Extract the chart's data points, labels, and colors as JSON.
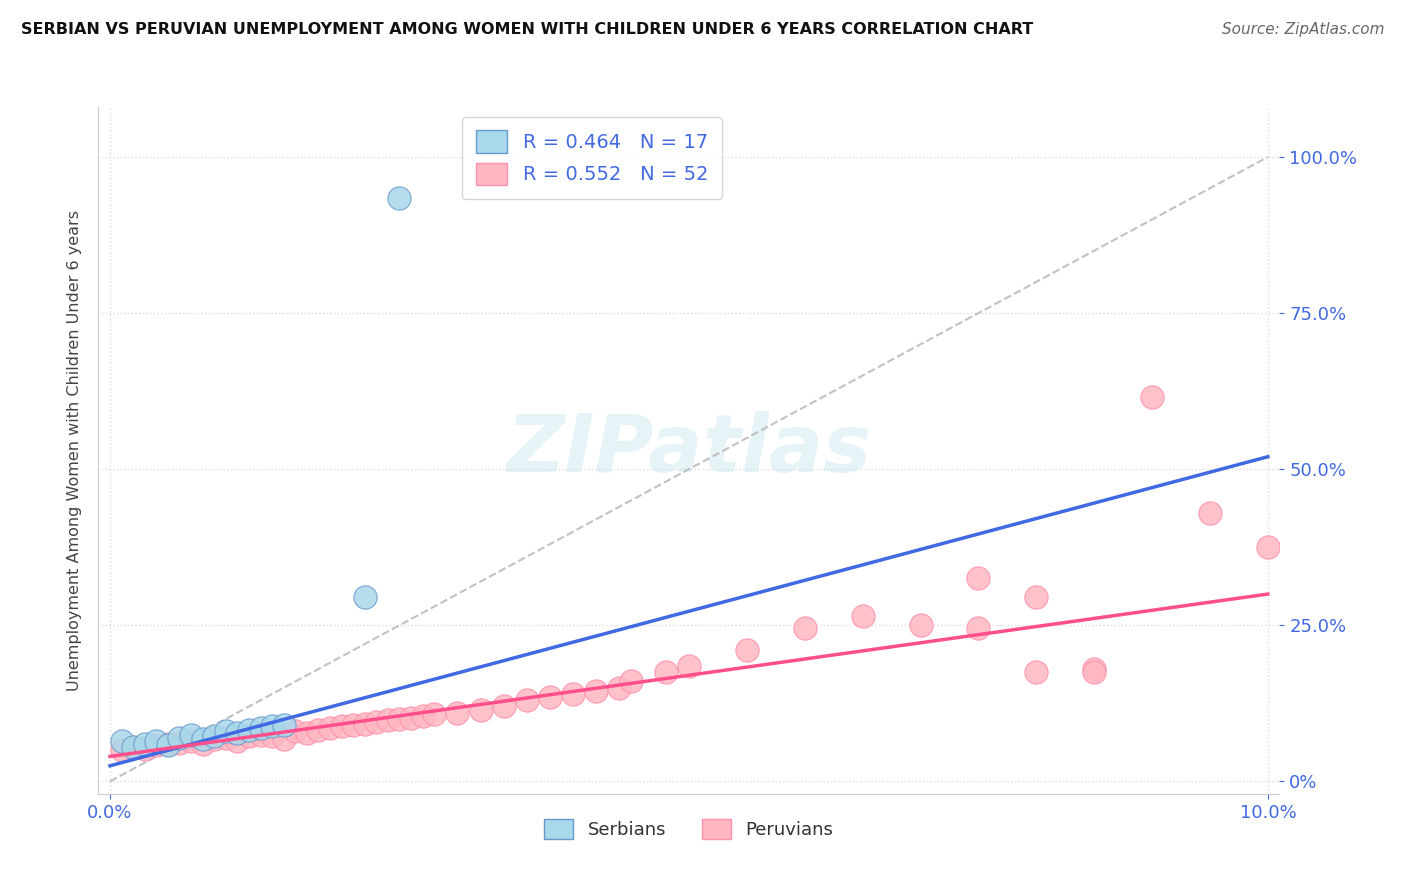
{
  "title": "SERBIAN VS PERUVIAN UNEMPLOYMENT AMONG WOMEN WITH CHILDREN UNDER 6 YEARS CORRELATION CHART",
  "source": "Source: ZipAtlas.com",
  "ylabel": "Unemployment Among Women with Children Under 6 years",
  "ytick_vals": [
    0,
    0.25,
    0.5,
    0.75,
    1.0
  ],
  "ytick_labels": [
    "0%",
    "25.0%",
    "50.0%",
    "75.0%",
    "100.0%"
  ],
  "xtick_vals": [
    0,
    0.1
  ],
  "xtick_labels": [
    "0.0%",
    "10.0%"
  ],
  "R_serbian": 0.464,
  "N_serbian": 17,
  "R_peruvian": 0.552,
  "N_peruvian": 52,
  "color_serbian_fill": "#A8D8EA",
  "color_peruvian_fill": "#FFB6C1",
  "color_serbian_edge": "#6699CC",
  "color_peruvian_edge": "#FF8FAB",
  "color_serbian_line": "#4169E1",
  "color_peruvian_line": "#FF4F8B",
  "color_diagonal": "#BBBBBB",
  "legend_label_serbian": "Serbians",
  "legend_label_peruvian": "Peruvians",
  "watermark_text": "ZIPatlas",
  "serbian_line_x": [
    0.0,
    0.1
  ],
  "serbian_line_y": [
    0.025,
    0.52
  ],
  "peruvian_line_x": [
    0.0,
    0.1
  ],
  "peruvian_line_y": [
    0.04,
    0.3
  ],
  "serbian_points": [
    [
      0.001,
      0.065
    ],
    [
      0.002,
      0.055
    ],
    [
      0.003,
      0.06
    ],
    [
      0.004,
      0.065
    ],
    [
      0.005,
      0.058
    ],
    [
      0.006,
      0.07
    ],
    [
      0.007,
      0.075
    ],
    [
      0.008,
      0.068
    ],
    [
      0.009,
      0.072
    ],
    [
      0.01,
      0.08
    ],
    [
      0.011,
      0.078
    ],
    [
      0.012,
      0.082
    ],
    [
      0.013,
      0.085
    ],
    [
      0.014,
      0.088
    ],
    [
      0.015,
      0.09
    ],
    [
      0.022,
      0.295
    ],
    [
      0.025,
      0.935
    ]
  ],
  "peruvian_points": [
    [
      0.001,
      0.05
    ],
    [
      0.002,
      0.055
    ],
    [
      0.003,
      0.052
    ],
    [
      0.004,
      0.058
    ],
    [
      0.005,
      0.06
    ],
    [
      0.006,
      0.062
    ],
    [
      0.007,
      0.065
    ],
    [
      0.008,
      0.06
    ],
    [
      0.009,
      0.068
    ],
    [
      0.01,
      0.07
    ],
    [
      0.011,
      0.065
    ],
    [
      0.012,
      0.072
    ],
    [
      0.013,
      0.075
    ],
    [
      0.014,
      0.072
    ],
    [
      0.015,
      0.068
    ],
    [
      0.016,
      0.08
    ],
    [
      0.017,
      0.078
    ],
    [
      0.018,
      0.082
    ],
    [
      0.019,
      0.085
    ],
    [
      0.02,
      0.088
    ],
    [
      0.021,
      0.09
    ],
    [
      0.022,
      0.092
    ],
    [
      0.023,
      0.095
    ],
    [
      0.024,
      0.098
    ],
    [
      0.025,
      0.1
    ],
    [
      0.026,
      0.102
    ],
    [
      0.027,
      0.105
    ],
    [
      0.028,
      0.108
    ],
    [
      0.03,
      0.11
    ],
    [
      0.032,
      0.115
    ],
    [
      0.034,
      0.12
    ],
    [
      0.036,
      0.13
    ],
    [
      0.038,
      0.135
    ],
    [
      0.04,
      0.14
    ],
    [
      0.042,
      0.145
    ],
    [
      0.044,
      0.15
    ],
    [
      0.045,
      0.16
    ],
    [
      0.048,
      0.175
    ],
    [
      0.05,
      0.185
    ],
    [
      0.055,
      0.21
    ],
    [
      0.06,
      0.245
    ],
    [
      0.065,
      0.265
    ],
    [
      0.07,
      0.25
    ],
    [
      0.075,
      0.245
    ],
    [
      0.075,
      0.325
    ],
    [
      0.08,
      0.295
    ],
    [
      0.08,
      0.175
    ],
    [
      0.085,
      0.18
    ],
    [
      0.085,
      0.175
    ],
    [
      0.09,
      0.615
    ],
    [
      0.095,
      0.43
    ],
    [
      0.1,
      0.375
    ]
  ]
}
